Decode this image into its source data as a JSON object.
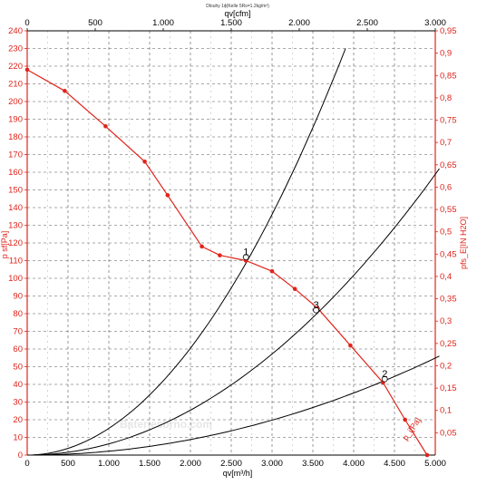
{
  "chart_data": {
    "type": "line",
    "title": "Dlouhy 1ɸ(Kelle 5Rs=1.2kg/m³)",
    "watermark": "Bateriesbrno.com",
    "x_axis": {
      "label": "qv[m³/h]",
      "range": [
        0,
        5000
      ],
      "ticks": [
        "0",
        "500",
        "1.000",
        "1.500",
        "2.000",
        "2.500",
        "3.000",
        "3.500",
        "4.000",
        "4.500",
        "5.000"
      ]
    },
    "x_axis_top": {
      "label": "qv[cfm]",
      "range": [
        0,
        3000
      ],
      "ticks": [
        "0",
        "500",
        "1.000",
        "1.500",
        "2.000",
        "2.500",
        "3.000"
      ]
    },
    "y_axis_left": {
      "label": "p sf[Pa]",
      "range": [
        0,
        240
      ],
      "ticks": [
        "0",
        "10",
        "20",
        "30",
        "40",
        "50",
        "60",
        "70",
        "80",
        "90",
        "100",
        "110",
        "120",
        "130",
        "140",
        "150",
        "160",
        "170",
        "180",
        "190",
        "200",
        "210",
        "220",
        "230",
        "240"
      ]
    },
    "y_axis_right": {
      "label": "pfs_E[IN H2O]",
      "range": [
        0,
        0.95
      ],
      "ticks": [
        "0,05",
        "0,1",
        "0,15",
        "0,2",
        "0,25",
        "0,3",
        "0,35",
        "0,4",
        "0,45",
        "0,5",
        "0,55",
        "0,6",
        "0,65",
        "0,7",
        "0,75",
        "0,8",
        "0,85",
        "0,9",
        "0,95"
      ]
    },
    "grid": true,
    "series": [
      {
        "name": "",
        "color": "#e0241b",
        "points": [
          {
            "x": 0,
            "y": 218
          },
          {
            "x": 460,
            "y": 206
          },
          {
            "x": 960,
            "y": 186
          },
          {
            "x": 1440,
            "y": 166
          },
          {
            "x": 1720,
            "y": 147
          },
          {
            "x": 2140,
            "y": 118
          },
          {
            "x": 2360,
            "y": 113
          },
          {
            "x": 2680,
            "y": 110
          },
          {
            "x": 3000,
            "y": 104
          },
          {
            "x": 3280,
            "y": 94
          },
          {
            "x": 3560,
            "y": 83
          },
          {
            "x": 3960,
            "y": 62
          },
          {
            "x": 4360,
            "y": 41
          },
          {
            "x": 4630,
            "y": 20
          },
          {
            "x": 4900,
            "y": 0
          }
        ]
      },
      {
        "name": "",
        "color": "#000000",
        "curve": "quadratic",
        "x_end": 3900,
        "y_end": 230
      },
      {
        "name": "",
        "color": "#000000",
        "curve": "quadratic",
        "x_end": 5050,
        "y_end": 162
      },
      {
        "name": "",
        "color": "#000000",
        "curve": "quadratic",
        "x_end": 5050,
        "y_end": 56
      }
    ],
    "operating_points": [
      {
        "label": "1",
        "x": 2680,
        "y": 112
      },
      {
        "label": "3",
        "x": 3540,
        "y": 82
      },
      {
        "label": "2",
        "x": 4380,
        "y": 43
      },
      {
        "label": "p_i[Pa]",
        "x": 4870,
        "y": 7
      }
    ]
  }
}
